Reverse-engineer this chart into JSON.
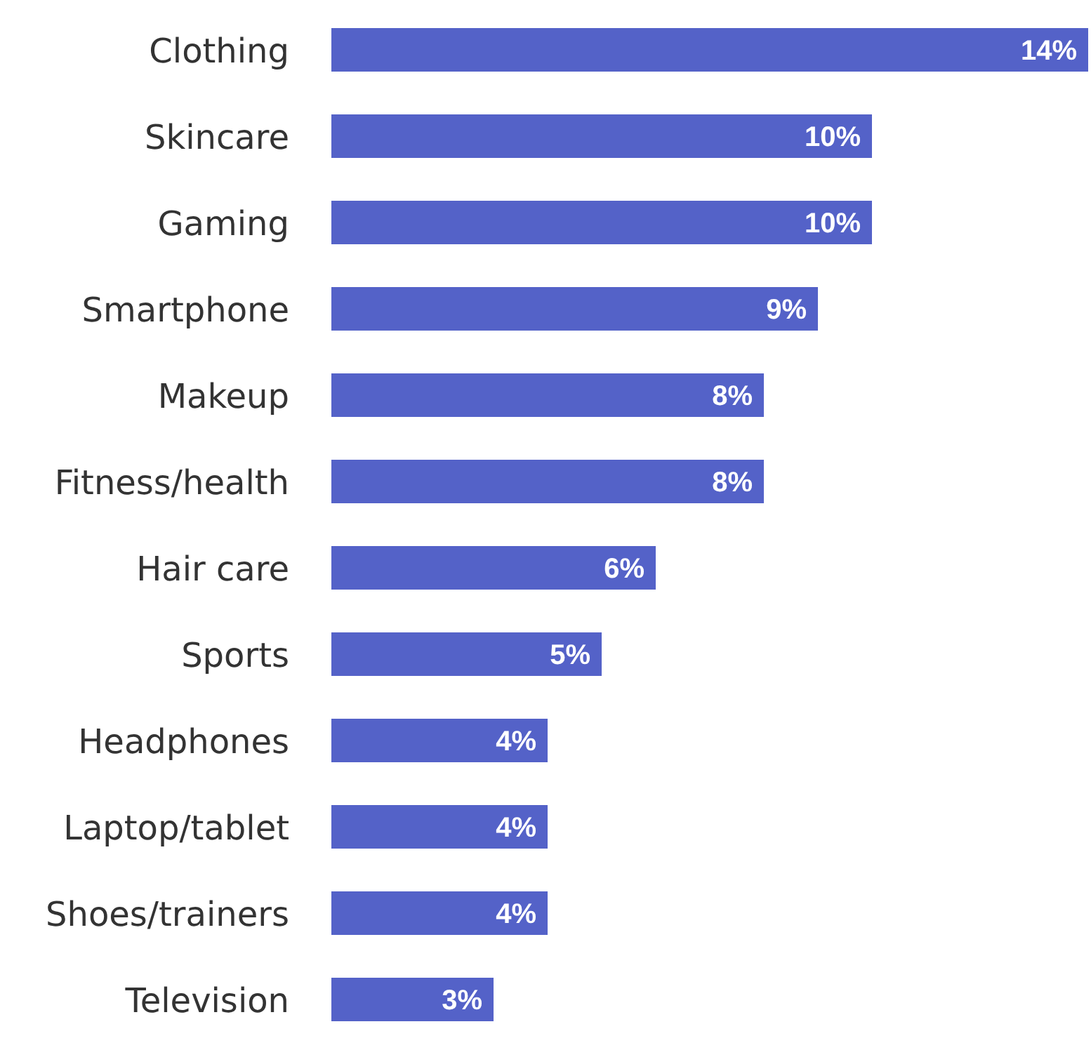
{
  "chart_data": {
    "type": "bar",
    "orientation": "horizontal",
    "categories": [
      "Clothing",
      "Skincare",
      "Gaming",
      "Smartphone",
      "Makeup",
      "Fitness/health",
      "Hair care",
      "Sports",
      "Headphones",
      "Laptop/tablet",
      "Shoes/trainers",
      "Television"
    ],
    "values": [
      14,
      10,
      10,
      9,
      8,
      8,
      6,
      5,
      4,
      4,
      4,
      3
    ],
    "value_labels": [
      "14%",
      "10%",
      "10%",
      "9%",
      "8%",
      "8%",
      "6%",
      "5%",
      "4%",
      "4%",
      "4%",
      "3%"
    ],
    "color": "#5462c8",
    "grid": false,
    "legend": false
  }
}
